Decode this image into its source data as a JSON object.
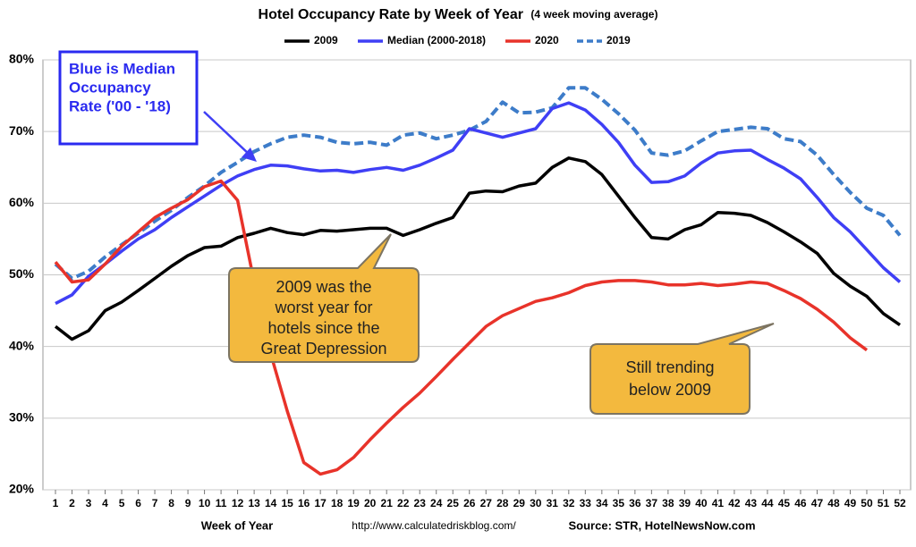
{
  "chart_data": {
    "type": "line",
    "title": "Hotel Occupancy Rate by  Week of Year",
    "subtitle": "(4 week moving average)",
    "x_label": "Week of Year",
    "url": "http://www.calculatedriskblog.com/",
    "source": "Source: STR, HotelNewsNow.com",
    "annotations": [
      [
        "Blue is Median",
        "Occupancy",
        "Rate ('00 - '18)"
      ],
      [
        "2009 was the",
        "worst year for",
        "hotels since the",
        "Great Depression"
      ],
      [
        "Still trending",
        "below 2009"
      ]
    ],
    "categories": [
      "1",
      "2",
      "3",
      "4",
      "5",
      "6",
      "7",
      "8",
      "9",
      "10",
      "11",
      "12",
      "13",
      "14",
      "15",
      "16",
      "17",
      "18",
      "19",
      "20",
      "21",
      "22",
      "23",
      "24",
      "25",
      "26",
      "27",
      "28",
      "29",
      "30",
      "31",
      "32",
      "33",
      "34",
      "35",
      "36",
      "37",
      "38",
      "39",
      "40",
      "41",
      "42",
      "43",
      "44",
      "45",
      "46",
      "47",
      "48",
      "49",
      "50",
      "51",
      "52"
    ],
    "ylim": [
      20,
      80
    ],
    "yticks": [
      {
        "value": 20,
        "label": "20%"
      },
      {
        "value": 30,
        "label": "30%"
      },
      {
        "value": 40,
        "label": "40%"
      },
      {
        "value": 50,
        "label": "50%"
      },
      {
        "value": 60,
        "label": "60%"
      },
      {
        "value": 70,
        "label": "70%"
      },
      {
        "value": 80,
        "label": "80%"
      }
    ],
    "grid": true,
    "series": [
      {
        "name": "2009",
        "color": "#000000",
        "style": "solid",
        "values": [
          42.8,
          41,
          42.2,
          45,
          46.2,
          47.8,
          49.5,
          51.2,
          52.7,
          53.8,
          54,
          55.2,
          55.8,
          56.5,
          55.9,
          55.6,
          56.2,
          56.1,
          56.3,
          56.5,
          56.5,
          55.5,
          56.3,
          57.2,
          58,
          61.4,
          61.7,
          61.6,
          62.4,
          62.8,
          65,
          66.3,
          65.8,
          64,
          61,
          58,
          55.2,
          55,
          56.3,
          57,
          58.7,
          58.6,
          58.3,
          57.3,
          56,
          54.6,
          53,
          50.2,
          48.4,
          47,
          44.6,
          43
        ]
      },
      {
        "name": "Median (2000-2018)",
        "color": "#3f3ff5",
        "style": "solid",
        "values": [
          46,
          47.2,
          49.8,
          51.5,
          53.3,
          55,
          56.3,
          58,
          59.5,
          61,
          62.5,
          63.8,
          64.7,
          65.3,
          65.2,
          64.8,
          64.5,
          64.6,
          64.3,
          64.7,
          65,
          64.6,
          65.3,
          66.3,
          67.4,
          70.4,
          69.8,
          69.2,
          69.8,
          70.4,
          73.2,
          74,
          73,
          71,
          68.5,
          65.3,
          62.9,
          63,
          63.8,
          65.6,
          67,
          67.3,
          67.4,
          66.1,
          64.9,
          63.4,
          60.8,
          58,
          56,
          53.5,
          51,
          49
        ]
      },
      {
        "name": "2020",
        "color": "#e8332a",
        "style": "solid",
        "values": [
          51.8,
          49,
          49.3,
          51.5,
          54,
          56,
          58,
          59.3,
          60.5,
          62.3,
          63.1,
          60.4,
          49,
          39,
          31,
          23.8,
          22.2,
          22.8,
          24.5,
          27,
          29.3,
          31.5,
          33.5,
          35.8,
          38.2,
          40.5,
          42.8,
          44.3,
          45.3,
          46.3,
          46.8,
          47.5,
          48.5,
          49,
          49.2,
          49.2,
          49,
          48.6,
          48.6,
          48.8,
          48.5,
          48.7,
          49,
          48.8,
          47.8,
          46.7,
          45.2,
          43.4,
          41.2,
          39.5,
          null,
          null
        ]
      },
      {
        "name": "2019",
        "color": "#3d7cc9",
        "style": "dashed",
        "values": [
          51.5,
          49.5,
          50.5,
          52.5,
          54.2,
          55.8,
          57.5,
          59,
          60.8,
          62.4,
          64.3,
          65.7,
          67.2,
          68.3,
          69.2,
          69.5,
          69.2,
          68.5,
          68.3,
          68.5,
          68.1,
          69.5,
          69.8,
          69,
          69.5,
          70.2,
          71.4,
          74.1,
          72.6,
          72.7,
          73.3,
          76.1,
          76.1,
          74.5,
          72.5,
          70.2,
          67,
          66.7,
          67.3,
          68.7,
          70,
          70.3,
          70.6,
          70.4,
          69,
          68.6,
          66.7,
          64,
          61.5,
          59.3,
          58.3,
          55.5
        ]
      }
    ]
  }
}
